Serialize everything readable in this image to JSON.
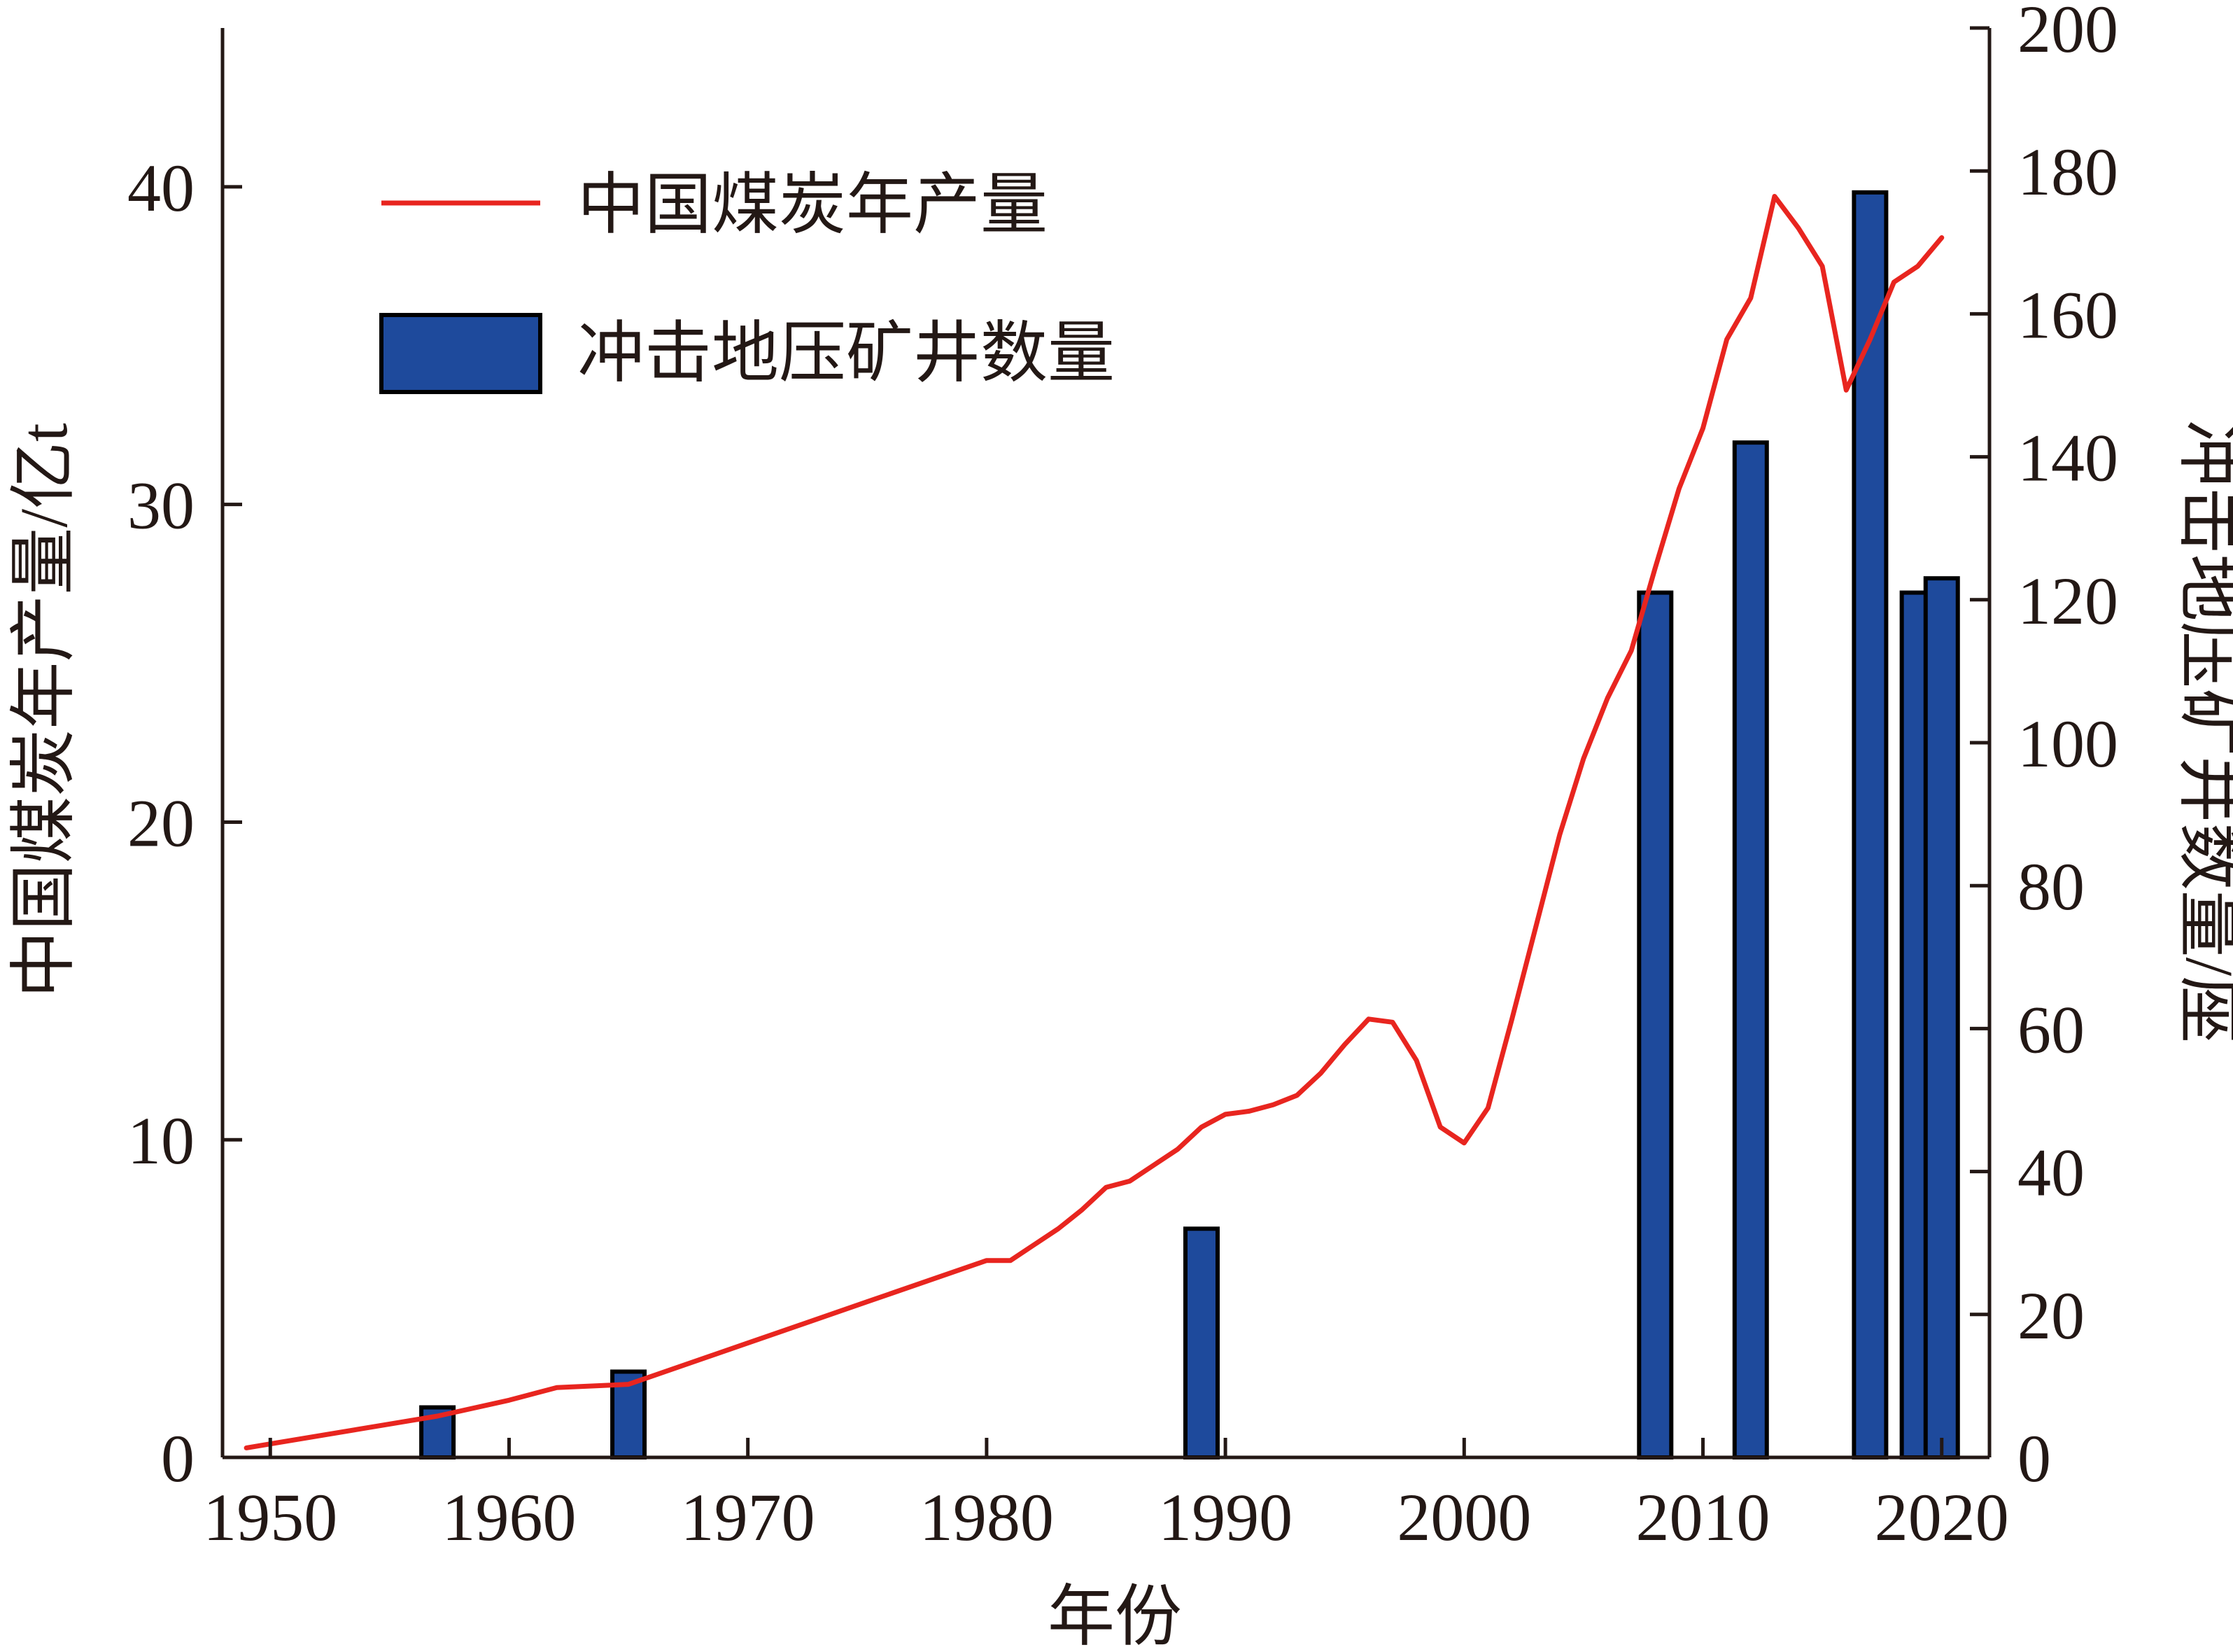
{
  "chart_data": {
    "type": "bar+line",
    "xlabel": "年份",
    "ylabel_left": "中国煤炭年产量/亿t",
    "ylabel_right": "冲击地压矿井数量/座",
    "xlim": [
      1948,
      2022
    ],
    "ylim_left": [
      0,
      45
    ],
    "ylim_right": [
      0,
      200
    ],
    "x_ticks": [
      1950,
      1960,
      1970,
      1980,
      1990,
      2000,
      2010,
      2020
    ],
    "y_left_ticks": [
      0,
      10,
      20,
      30,
      40
    ],
    "y_right_ticks": [
      0,
      20,
      40,
      60,
      80,
      100,
      120,
      140,
      160,
      180,
      200
    ],
    "grid": false,
    "legend_position": "top-left",
    "colors": {
      "line": "#e8251f",
      "bar": "#1e4a9c",
      "bar_edge": "#000000",
      "axis": "#231815"
    },
    "series": [
      {
        "name": "中国煤炭年产量",
        "type": "line",
        "axis": "left",
        "x": [
          1949,
          1957,
          1960,
          1962,
          1965,
          1970,
          1975,
          1980,
          1981,
          1982,
          1983,
          1984,
          1985,
          1986,
          1987,
          1988,
          1989,
          1990,
          1991,
          1992,
          1993,
          1994,
          1995,
          1996,
          1997,
          1998,
          1999,
          2000,
          2001,
          2002,
          2003,
          2004,
          2005,
          2006,
          2007,
          2008,
          2009,
          2010,
          2011,
          2012,
          2013,
          2014,
          2015,
          2016,
          2017,
          2018,
          2019,
          2020
        ],
        "y": [
          0.3,
          1.3,
          1.8,
          2.2,
          2.3,
          3.6,
          4.9,
          6.2,
          6.2,
          6.7,
          7.2,
          7.8,
          8.5,
          8.7,
          9.2,
          9.7,
          10.4,
          10.8,
          10.9,
          11.1,
          11.4,
          12.1,
          13.0,
          13.8,
          13.7,
          12.5,
          10.4,
          9.9,
          11.0,
          13.8,
          16.7,
          19.6,
          22.0,
          23.9,
          25.4,
          28.0,
          30.5,
          32.4,
          35.2,
          36.5,
          39.7,
          38.7,
          37.5,
          33.6,
          35.2,
          37.0,
          37.5,
          38.4
        ]
      },
      {
        "name": "冲击地压矿井数量",
        "type": "bar",
        "axis": "right",
        "x": [
          1957,
          1965,
          1989,
          2008,
          2012,
          2017,
          2019,
          2020
        ],
        "y": [
          7,
          12,
          32,
          121,
          142,
          177,
          121,
          123
        ]
      }
    ]
  }
}
